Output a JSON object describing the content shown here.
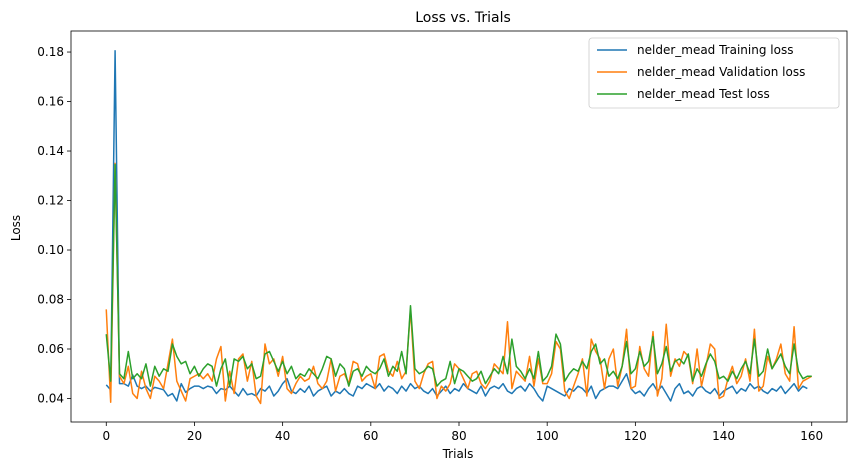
{
  "chart_data": {
    "type": "line",
    "title": "Loss vs. Trials",
    "xlabel": "Trials",
    "ylabel": "Loss",
    "xlim": [
      -8,
      168
    ],
    "ylim": [
      0.0305,
      0.1885
    ],
    "xticks": [
      0,
      20,
      40,
      60,
      80,
      100,
      120,
      140,
      160
    ],
    "yticks": [
      0.04,
      0.06,
      0.08,
      0.1,
      0.12,
      0.14,
      0.16,
      0.18
    ],
    "ytick_labels": [
      "0.04",
      "0.06",
      "0.08",
      "0.10",
      "0.12",
      "0.14",
      "0.16",
      "0.18"
    ],
    "grid": false,
    "legend_position": "top-right",
    "series": [
      {
        "name": "nelder_mead Training loss",
        "color": "#1f77b4",
        "values": [
          0.0455,
          0.0435,
          0.1805,
          0.046,
          0.046,
          0.045,
          0.0495,
          0.045,
          0.044,
          0.045,
          0.043,
          0.0445,
          0.044,
          0.0435,
          0.041,
          0.042,
          0.039,
          0.046,
          0.0425,
          0.044,
          0.045,
          0.045,
          0.044,
          0.045,
          0.0445,
          0.042,
          0.044,
          0.0435,
          0.045,
          0.043,
          0.041,
          0.044,
          0.0415,
          0.042,
          0.041,
          0.044,
          0.043,
          0.045,
          0.041,
          0.043,
          0.046,
          0.048,
          0.043,
          0.042,
          0.044,
          0.0425,
          0.045,
          0.041,
          0.043,
          0.044,
          0.045,
          0.041,
          0.043,
          0.042,
          0.044,
          0.042,
          0.041,
          0.045,
          0.044,
          0.046,
          0.045,
          0.044,
          0.046,
          0.043,
          0.045,
          0.044,
          0.042,
          0.045,
          0.043,
          0.046,
          0.044,
          0.045,
          0.043,
          0.042,
          0.044,
          0.041,
          0.043,
          0.045,
          0.042,
          0.044,
          0.043,
          0.046,
          0.044,
          0.043,
          0.042,
          0.045,
          0.041,
          0.044,
          0.045,
          0.044,
          0.046,
          0.043,
          0.042,
          0.044,
          0.045,
          0.043,
          0.046,
          0.044,
          0.041,
          0.039,
          0.045,
          0.044,
          0.043,
          0.042,
          0.041,
          0.044,
          0.043,
          0.045,
          0.044,
          0.042,
          0.045,
          0.04,
          0.043,
          0.044,
          0.045,
          0.045,
          0.044,
          0.047,
          0.05,
          0.044,
          0.042,
          0.043,
          0.041,
          0.044,
          0.046,
          0.043,
          0.045,
          0.042,
          0.039,
          0.044,
          0.046,
          0.042,
          0.043,
          0.041,
          0.044,
          0.045,
          0.043,
          0.042,
          0.044,
          0.041,
          0.043,
          0.044,
          0.045,
          0.042,
          0.044,
          0.043,
          0.046,
          0.044,
          0.045,
          0.043,
          0.042,
          0.044,
          0.043,
          0.045,
          0.042,
          0.044,
          0.046,
          0.043,
          0.045,
          0.044
        ],
        "values_extra": []
      },
      {
        "name": "nelder_mead Validation loss",
        "color": "#ff7f0e",
        "values": [
          0.076,
          0.0385,
          0.135,
          0.049,
          0.046,
          0.053,
          0.042,
          0.04,
          0.051,
          0.044,
          0.04,
          0.049,
          0.047,
          0.044,
          0.054,
          0.064,
          0.047,
          0.043,
          0.039,
          0.048,
          0.049,
          0.05,
          0.048,
          0.05,
          0.047,
          0.056,
          0.061,
          0.039,
          0.051,
          0.042,
          0.056,
          0.058,
          0.047,
          0.055,
          0.041,
          0.038,
          0.062,
          0.054,
          0.056,
          0.049,
          0.057,
          0.044,
          0.042,
          0.046,
          0.049,
          0.047,
          0.048,
          0.053,
          0.046,
          0.044,
          0.047,
          0.056,
          0.043,
          0.049,
          0.05,
          0.046,
          0.055,
          0.054,
          0.047,
          0.049,
          0.05,
          0.044,
          0.057,
          0.058,
          0.051,
          0.049,
          0.055,
          0.048,
          0.051,
          0.076,
          0.047,
          0.044,
          0.05,
          0.054,
          0.055,
          0.04,
          0.045,
          0.043,
          0.046,
          0.054,
          0.052,
          0.048,
          0.044,
          0.05,
          0.051,
          0.046,
          0.044,
          0.047,
          0.054,
          0.052,
          0.05,
          0.071,
          0.044,
          0.051,
          0.049,
          0.047,
          0.057,
          0.045,
          0.056,
          0.046,
          0.046,
          0.05,
          0.063,
          0.06,
          0.043,
          0.04,
          0.045,
          0.05,
          0.056,
          0.041,
          0.064,
          0.059,
          0.056,
          0.044,
          0.056,
          0.06,
          0.045,
          0.053,
          0.068,
          0.044,
          0.045,
          0.061,
          0.052,
          0.049,
          0.067,
          0.041,
          0.048,
          0.07,
          0.049,
          0.056,
          0.053,
          0.059,
          0.057,
          0.046,
          0.06,
          0.045,
          0.053,
          0.062,
          0.06,
          0.04,
          0.041,
          0.048,
          0.053,
          0.046,
          0.049,
          0.056,
          0.047,
          0.068,
          0.043,
          0.045,
          0.057,
          0.052,
          0.056,
          0.062,
          0.05,
          0.047,
          0.069,
          0.044,
          0.047,
          0.048,
          0.049
        ],
        "values_extra": []
      },
      {
        "name": "nelder_mead Test loss",
        "color": "#2ca02c",
        "values": [
          0.066,
          0.047,
          0.1345,
          0.05,
          0.048,
          0.059,
          0.048,
          0.05,
          0.048,
          0.054,
          0.045,
          0.053,
          0.049,
          0.052,
          0.051,
          0.062,
          0.057,
          0.054,
          0.055,
          0.05,
          0.053,
          0.049,
          0.052,
          0.054,
          0.053,
          0.045,
          0.052,
          0.056,
          0.045,
          0.056,
          0.055,
          0.057,
          0.052,
          0.054,
          0.048,
          0.049,
          0.058,
          0.059,
          0.055,
          0.051,
          0.055,
          0.05,
          0.053,
          0.048,
          0.05,
          0.049,
          0.052,
          0.05,
          0.048,
          0.052,
          0.057,
          0.056,
          0.049,
          0.054,
          0.052,
          0.045,
          0.051,
          0.052,
          0.049,
          0.053,
          0.051,
          0.05,
          0.052,
          0.056,
          0.049,
          0.053,
          0.051,
          0.059,
          0.05,
          0.0775,
          0.052,
          0.05,
          0.051,
          0.053,
          0.052,
          0.045,
          0.047,
          0.048,
          0.055,
          0.046,
          0.052,
          0.051,
          0.049,
          0.047,
          0.048,
          0.051,
          0.046,
          0.049,
          0.052,
          0.05,
          0.057,
          0.05,
          0.064,
          0.053,
          0.051,
          0.048,
          0.052,
          0.048,
          0.059,
          0.047,
          0.049,
          0.053,
          0.066,
          0.062,
          0.047,
          0.05,
          0.052,
          0.051,
          0.055,
          0.052,
          0.059,
          0.062,
          0.054,
          0.056,
          0.049,
          0.051,
          0.048,
          0.053,
          0.063,
          0.05,
          0.052,
          0.059,
          0.053,
          0.055,
          0.065,
          0.05,
          0.054,
          0.061,
          0.051,
          0.055,
          0.056,
          0.054,
          0.058,
          0.047,
          0.052,
          0.049,
          0.054,
          0.058,
          0.055,
          0.048,
          0.049,
          0.047,
          0.051,
          0.048,
          0.052,
          0.055,
          0.05,
          0.064,
          0.049,
          0.051,
          0.06,
          0.052,
          0.055,
          0.058,
          0.053,
          0.05,
          0.062,
          0.051,
          0.048,
          0.049,
          0.049
        ],
        "values_extra": []
      }
    ]
  }
}
